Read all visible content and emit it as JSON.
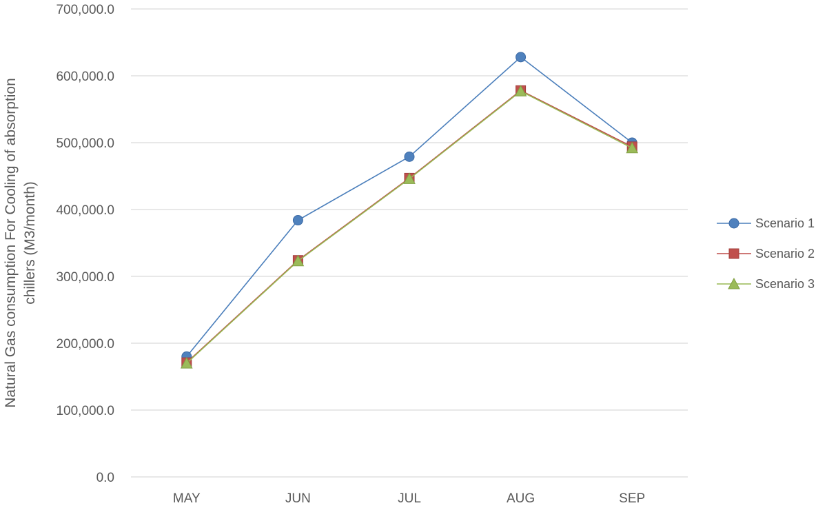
{
  "chart_data": {
    "type": "line",
    "title": "",
    "xlabel": "",
    "ylabel": "Natural Gas consumption For Cooling of absorption chillers (M3/month)",
    "ylabel_lines": [
      "Natural Gas consumption For Cooling of absorption",
      "chillers (M3/month)"
    ],
    "categories": [
      "MAY",
      "JUN",
      "JUL",
      "AUG",
      "SEP"
    ],
    "ylim": [
      0,
      700000
    ],
    "yticks": [
      0,
      100000,
      200000,
      300000,
      400000,
      500000,
      600000,
      700000
    ],
    "ytick_labels": [
      "0.0",
      "100,000.0",
      "200,000.0",
      "300,000.0",
      "400,000.0",
      "500,000.0",
      "600,000.0",
      "700,000.0"
    ],
    "grid": true,
    "legend_position": "right",
    "series": [
      {
        "name": "Scenario 1",
        "marker": "circle",
        "color": "#4F81BD",
        "line_color": "#4A7EBB",
        "values": [
          180000,
          384000,
          479000,
          628000,
          500000
        ]
      },
      {
        "name": "Scenario 2",
        "marker": "square",
        "color": "#C0504D",
        "line_color": "#BE4B48",
        "values": [
          171000,
          324000,
          447000,
          578000,
          494000
        ]
      },
      {
        "name": "Scenario 3",
        "marker": "triangle",
        "color": "#9BBB59",
        "line_color": "#98B954",
        "values": [
          170000,
          323000,
          446000,
          577000,
          492000
        ]
      }
    ]
  }
}
